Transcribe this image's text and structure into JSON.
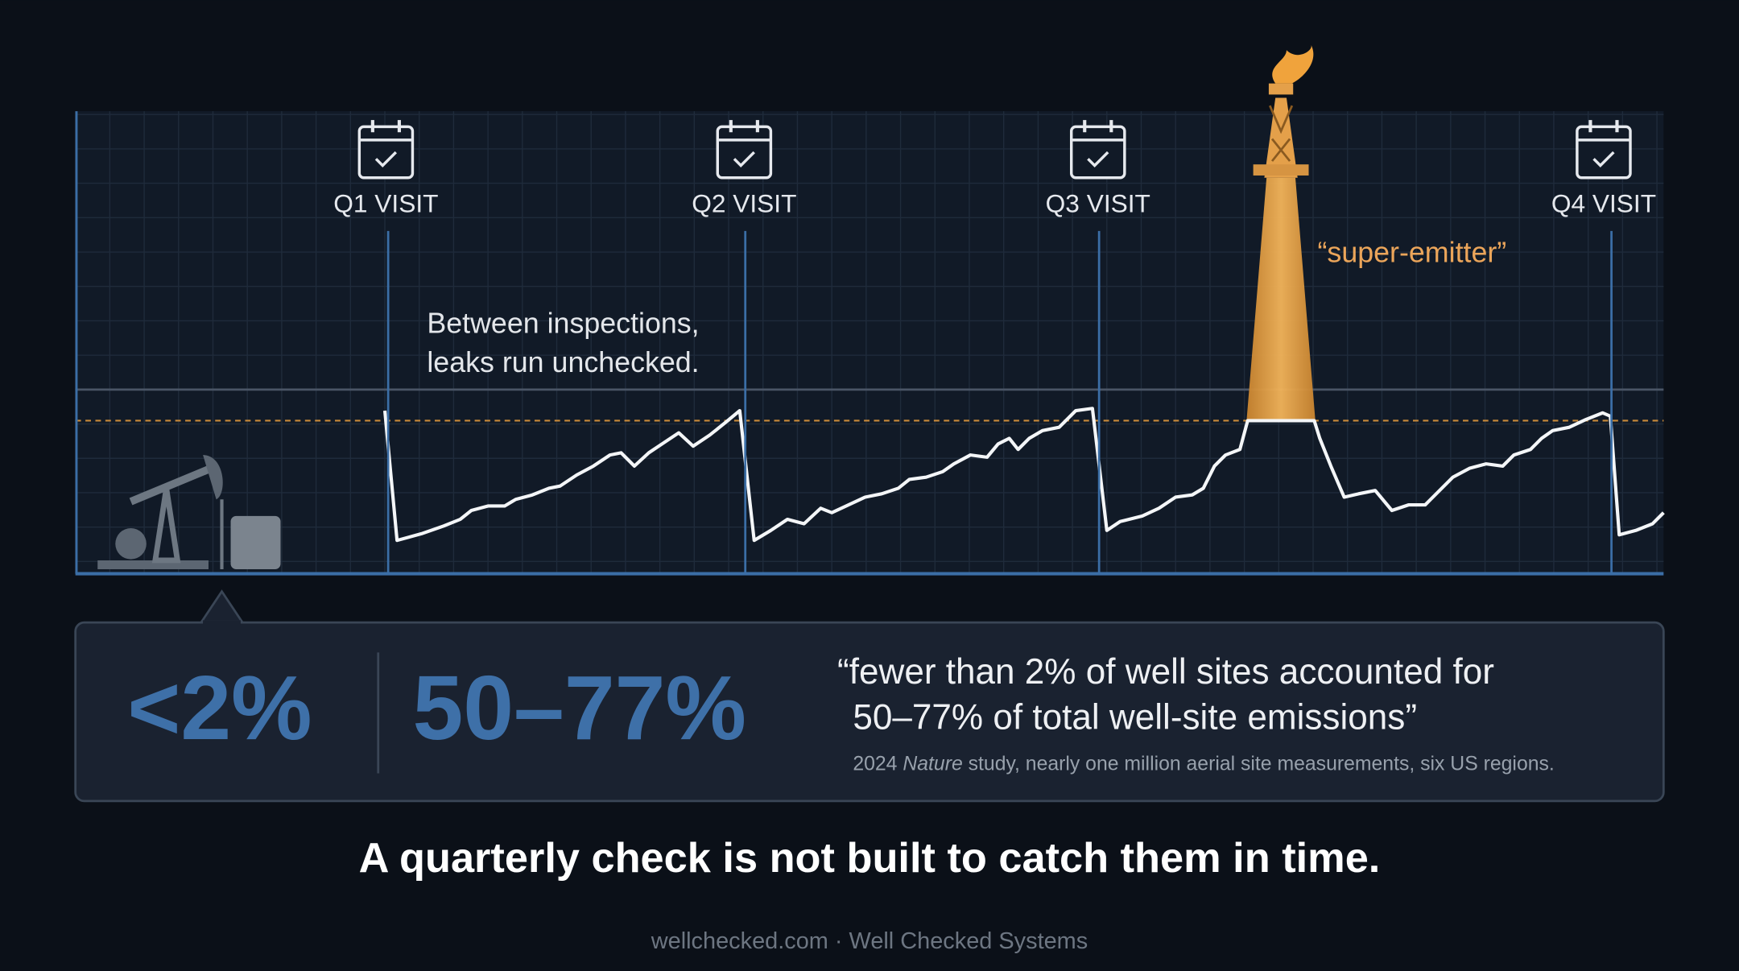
{
  "visits": [
    "Q1 VISIT",
    "Q2 VISIT",
    "Q3 VISIT",
    "Q4 VISIT"
  ],
  "annotation": [
    "Between inspections,",
    "leaks run unchecked."
  ],
  "super_emitter_label": "“super-emitter”",
  "stats": {
    "share_sites": "<2%",
    "share_emissions": "50–77%"
  },
  "quote": [
    "“fewer than 2% of well sites accounted for",
    "50–77% of total well-site emissions”"
  ],
  "source": {
    "year": "2024",
    "journal": "Nature",
    "rest": "study, nearly one million aerial site measurements, six US regions."
  },
  "headline": "A quarterly check is not built to catch them in time.",
  "footer": "wellchecked.com · Well Checked Systems"
}
